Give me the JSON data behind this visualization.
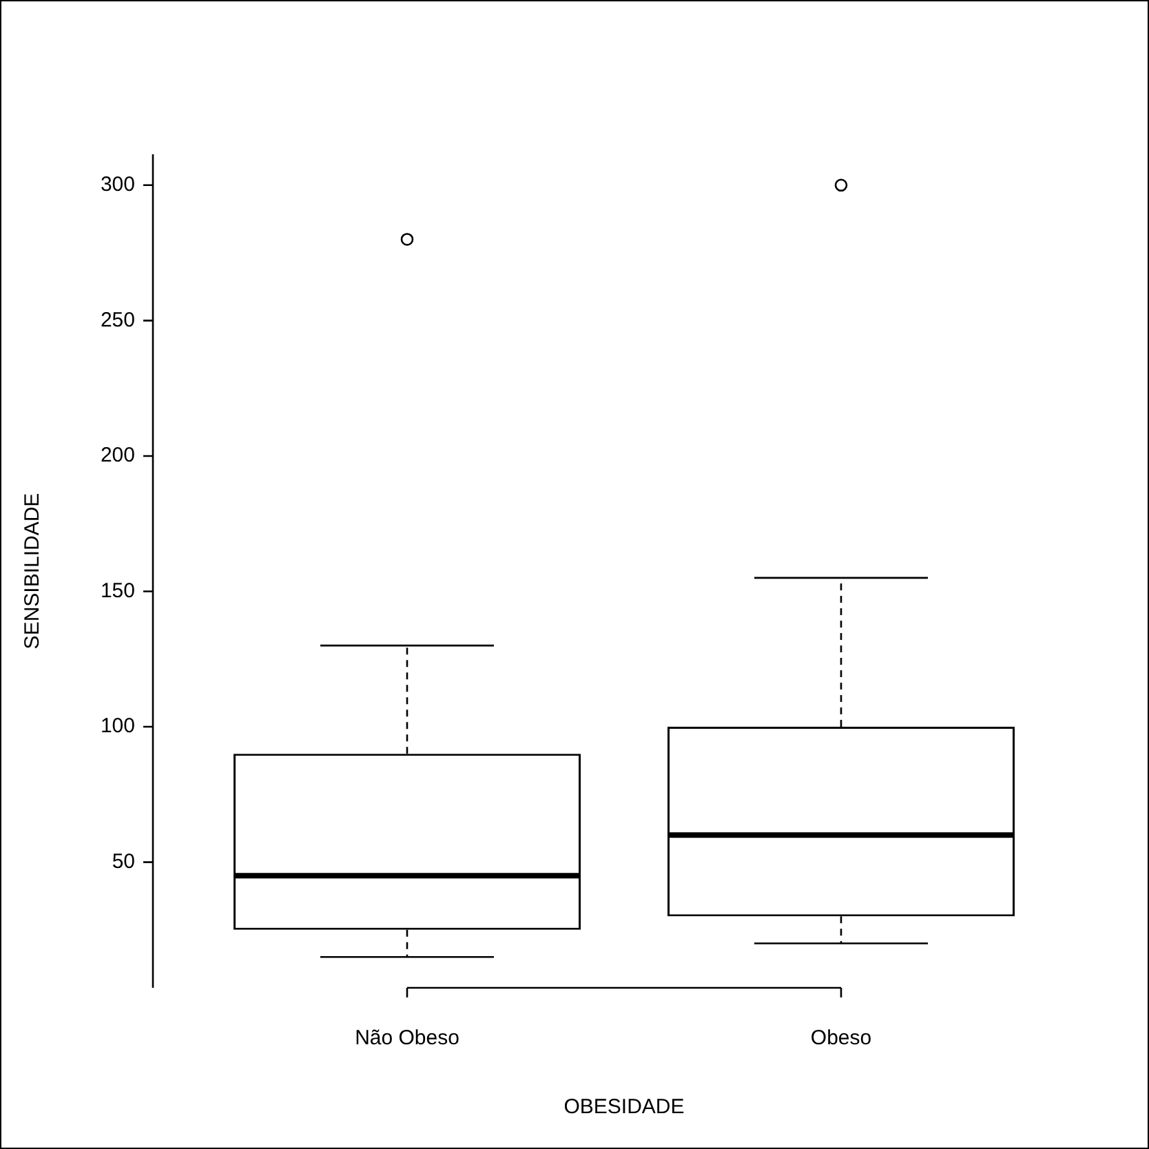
{
  "chart_data": {
    "type": "box",
    "xlabel": "OBESIDADE",
    "ylabel": "SENSIBILIDADE",
    "categories": [
      "Não Obeso",
      "Obeso"
    ],
    "boxes": [
      {
        "low": 15,
        "q1": 25,
        "median": 45,
        "q3": 90,
        "high": 130,
        "outliers": [
          280
        ]
      },
      {
        "low": 20,
        "q1": 30,
        "median": 60,
        "q3": 100,
        "high": 155,
        "outliers": [
          300
        ]
      }
    ],
    "ylim": [
      3.6,
      311.4
    ],
    "yticks": [
      50,
      100,
      150,
      200,
      250,
      300
    ],
    "grid": false,
    "legend": false
  }
}
